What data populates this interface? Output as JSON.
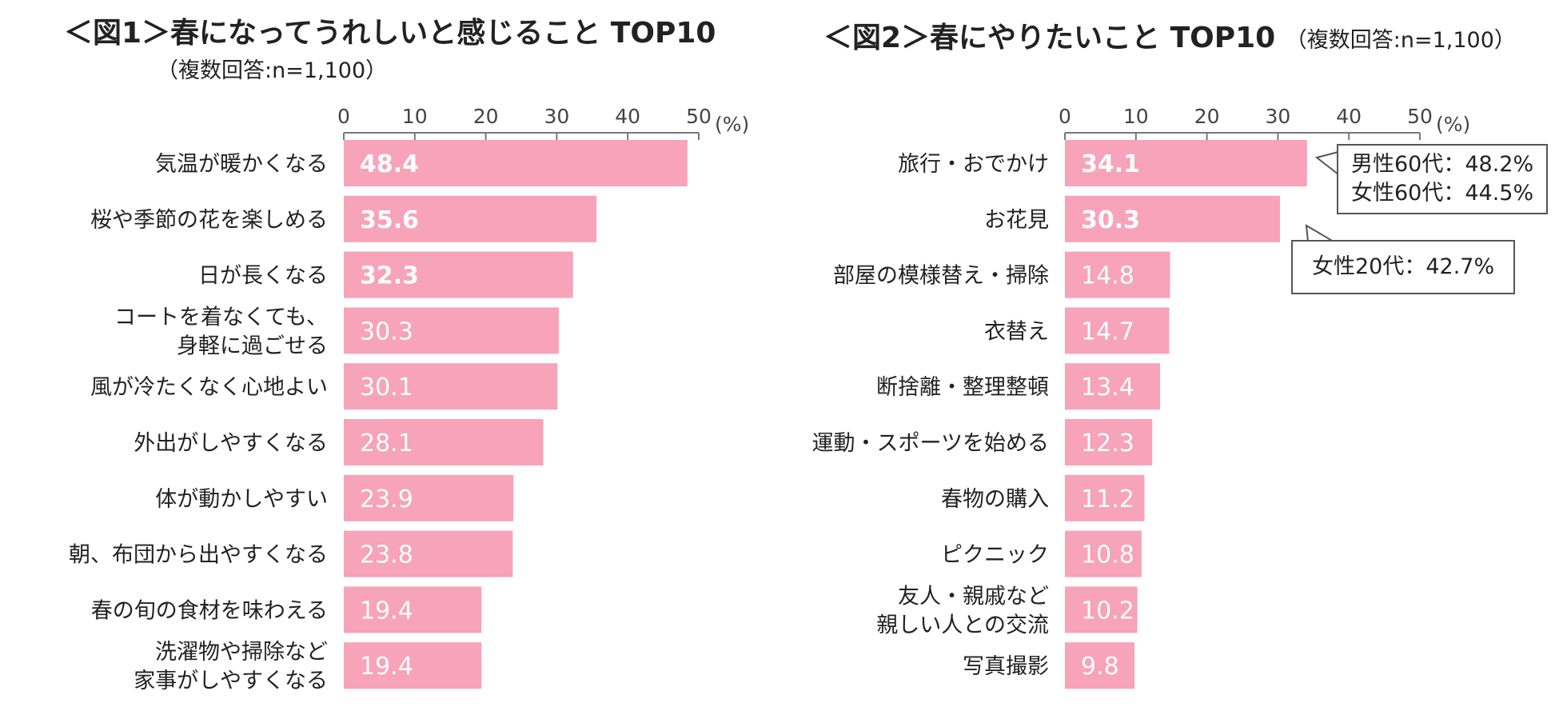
{
  "chart_data": [
    {
      "type": "bar",
      "orientation": "horizontal",
      "title": "＜図1＞春になってうれしいと感じること TOP10",
      "subtitle": "（複数回答:n=1,100）",
      "unit_label": "(%)",
      "ticks": [
        "0",
        "10",
        "20",
        "30",
        "40",
        "50"
      ],
      "xlim": [
        0,
        50
      ],
      "categories": [
        [
          "気温が暖かくなる"
        ],
        [
          "桜や季節の花を楽しめる"
        ],
        [
          "日が長くなる"
        ],
        [
          "コートを着なくても、",
          "身軽に過ごせる"
        ],
        [
          "風が冷たくなく心地よい"
        ],
        [
          "外出がしやすくなる"
        ],
        [
          "体が動かしやすい"
        ],
        [
          "朝、布団から出やすくなる"
        ],
        [
          "春の旬の食材を味わえる"
        ],
        [
          "洗濯物や掃除など",
          "家事がしやすくなる"
        ]
      ],
      "values": [
        48.4,
        35.6,
        32.3,
        30.3,
        30.1,
        28.1,
        23.9,
        23.8,
        19.4,
        19.4
      ],
      "value_labels": [
        "48.4",
        "35.6",
        "32.3",
        "30.3",
        "30.1",
        "28.1",
        "23.9",
        "23.8",
        "19.4",
        "19.4"
      ],
      "bold_top": 3
    },
    {
      "type": "bar",
      "orientation": "horizontal",
      "title": "＜図2＞春にやりたいこと TOP10",
      "subtitle": "（複数回答:n=1,100）",
      "unit_label": "(%)",
      "ticks": [
        "0",
        "10",
        "20",
        "30",
        "40",
        "50"
      ],
      "xlim": [
        0,
        50
      ],
      "categories": [
        [
          "旅行・おでかけ"
        ],
        [
          "お花見"
        ],
        [
          "部屋の模様替え・掃除"
        ],
        [
          "衣替え"
        ],
        [
          "断捨離・整理整頓"
        ],
        [
          "運動・スポーツを始める"
        ],
        [
          "春物の購入"
        ],
        [
          "ピクニック"
        ],
        [
          "友人・親戚など",
          "親しい人との交流"
        ],
        [
          "写真撮影"
        ]
      ],
      "values": [
        34.1,
        30.3,
        14.8,
        14.7,
        13.4,
        12.3,
        11.2,
        10.8,
        10.2,
        9.8
      ],
      "value_labels": [
        "34.1",
        "30.3",
        "14.8",
        "14.7",
        "13.4",
        "12.3",
        "11.2",
        "10.8",
        "10.2",
        "9.8"
      ],
      "bold_top": 2,
      "annotations": [
        {
          "target": "旅行・おでかけ",
          "lines": [
            "男性60代：48.2%",
            "女性60代：44.5%"
          ]
        },
        {
          "target": "お花見",
          "lines": [
            "女性20代：42.7%"
          ]
        }
      ]
    }
  ],
  "colors": {
    "bar": "#f7a3b9",
    "axis": "#777777",
    "text": "#222222"
  }
}
